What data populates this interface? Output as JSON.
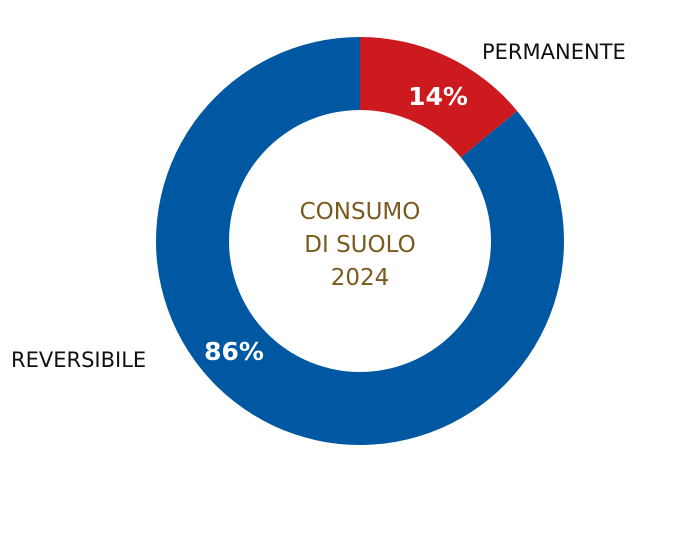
{
  "chart_data": {
    "type": "pie",
    "subtype": "donut",
    "center_text": [
      "CONSUMO",
      "DI SUOLO",
      "2024"
    ],
    "slices": [
      {
        "label": "PERMANENTE",
        "value": 14,
        "display": "14%",
        "color": "#cc1a1f"
      },
      {
        "label": "REVERSIBILE",
        "value": 86,
        "display": "86%",
        "color": "#0058a3"
      }
    ],
    "center_text_color": "#7a5a1e",
    "background": "#ffffff"
  }
}
